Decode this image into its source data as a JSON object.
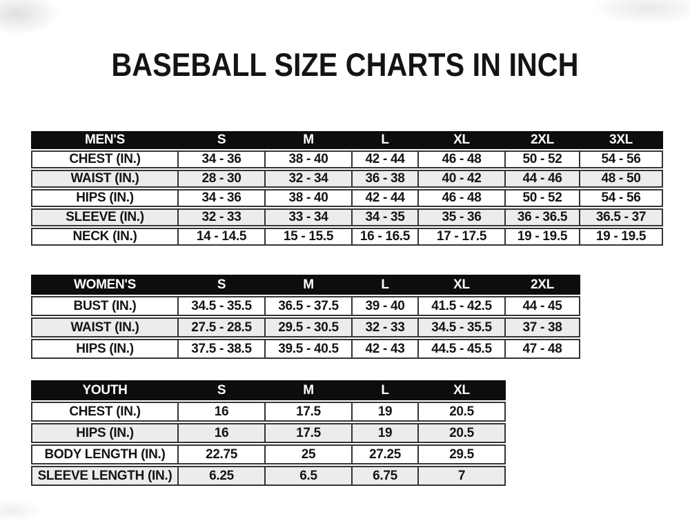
{
  "title": "BASEBALL SIZE CHARTS IN INCH",
  "colors": {
    "header_bg": "#0d0d0d",
    "row_alt_bg": "#ececec",
    "border_color": "#333333",
    "text_color": "#141414"
  },
  "chart_data": [
    {
      "type": "table",
      "title": "MEN'S",
      "header": [
        "MEN'S",
        "S",
        "M",
        "L",
        "XL",
        "2XL",
        "3XL"
      ],
      "rows": [
        {
          "label": "CHEST (IN.)",
          "values": [
            "34 - 36",
            "38 - 40",
            "42 - 44",
            "46 - 48",
            "50 - 52",
            "54 - 56"
          ]
        },
        {
          "label": "WAIST (IN.)",
          "values": [
            "28 - 30",
            "32 - 34",
            "36 - 38",
            "40 - 42",
            "44 - 46",
            "48 - 50"
          ]
        },
        {
          "label": "HIPS (IN.)",
          "values": [
            "34 - 36",
            "38 - 40",
            "42 - 44",
            "46 - 48",
            "50 - 52",
            "54 - 56"
          ]
        },
        {
          "label": "SLEEVE (IN.)",
          "values": [
            "32 - 33",
            "33 - 34",
            "34 - 35",
            "35 - 36",
            "36 - 36.5",
            "36.5 - 37"
          ]
        },
        {
          "label": "NECK (IN.)",
          "values": [
            "14 - 14.5",
            "15 - 15.5",
            "16 - 16.5",
            "17 - 17.5",
            "19 - 19.5",
            "19 - 19.5"
          ]
        }
      ]
    },
    {
      "type": "table",
      "title": "WOMEN'S",
      "header": [
        "WOMEN'S",
        "S",
        "M",
        "L",
        "XL",
        "2XL"
      ],
      "rows": [
        {
          "label": "BUST (IN.)",
          "values": [
            "34.5 - 35.5",
            "36.5 - 37.5",
            "39 - 40",
            "41.5 - 42.5",
            "44 - 45"
          ]
        },
        {
          "label": "WAIST (IN.)",
          "values": [
            "27.5 - 28.5",
            "29.5 - 30.5",
            "32 - 33",
            "34.5 - 35.5",
            "37 - 38"
          ]
        },
        {
          "label": "HIPS (IN.)",
          "values": [
            "37.5 - 38.5",
            "39.5 - 40.5",
            "42 - 43",
            "44.5 - 45.5",
            "47 - 48"
          ]
        }
      ]
    },
    {
      "type": "table",
      "title": "YOUTH",
      "header": [
        "YOUTH",
        "S",
        "M",
        "L",
        "XL"
      ],
      "rows": [
        {
          "label": "CHEST (IN.)",
          "values": [
            "16",
            "17.5",
            "19",
            "20.5"
          ]
        },
        {
          "label": "HIPS (IN.)",
          "values": [
            "16",
            "17.5",
            "19",
            "20.5"
          ]
        },
        {
          "label": "BODY LENGTH (IN.)",
          "values": [
            "22.75",
            "25",
            "27.25",
            "29.5"
          ]
        },
        {
          "label": "SLEEVE LENGTH (IN.)",
          "values": [
            "6.25",
            "6.5",
            "6.75",
            "7"
          ]
        }
      ]
    }
  ]
}
